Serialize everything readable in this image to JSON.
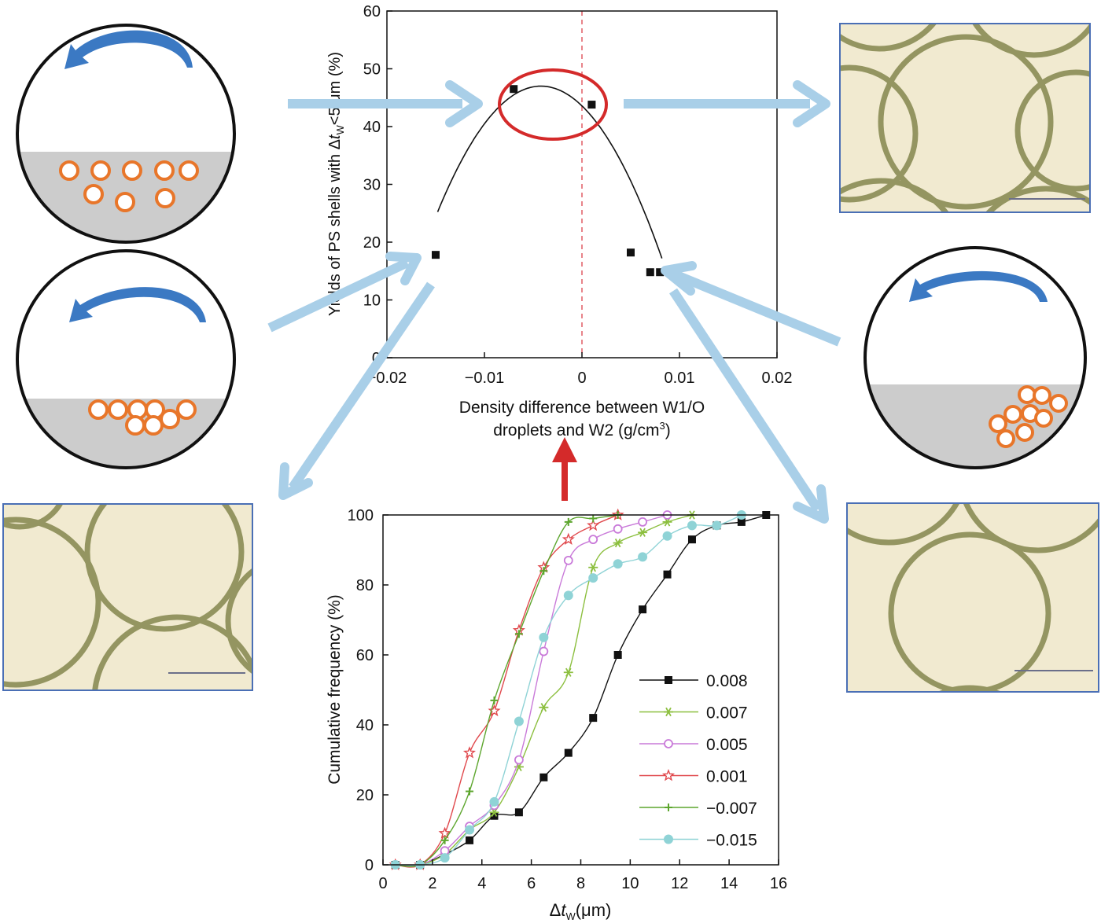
{
  "chart_data": [
    {
      "type": "scatter",
      "ylabel_pre": "Yields of PS shells with Δ",
      "ylabel_t": "t",
      "ylabel_sub": "W",
      "ylabel_post": "<5 μm (%)",
      "xlabel_line1": "Density difference between W1/O",
      "xlabel_line2_pre": "droplets and W2 (g/cm",
      "xlabel_line2_sup": "3",
      "xlabel_line2_post": ")",
      "xlim": [
        -0.02,
        0.02
      ],
      "ylim": [
        0,
        60
      ],
      "x_ticks": [
        -0.02,
        -0.01,
        0,
        0.01,
        0.02
      ],
      "x_tick_labels": [
        "−0.02",
        "−0.01",
        "0",
        "0.01",
        "0.02"
      ],
      "y_ticks": [
        0,
        10,
        20,
        30,
        40,
        50,
        60
      ],
      "y_tick_labels": [
        "0",
        "10",
        "20",
        "30",
        "40",
        "50",
        "60"
      ],
      "points": [
        {
          "x": -0.015,
          "y": 17.8
        },
        {
          "x": -0.007,
          "y": 46.5
        },
        {
          "x": 0.001,
          "y": 43.8
        },
        {
          "x": 0.005,
          "y": 18.2
        },
        {
          "x": 0.007,
          "y": 14.8
        },
        {
          "x": 0.008,
          "y": 14.8
        }
      ],
      "fit_curve": {
        "vertex_x": -0.0042,
        "vertex_y": 47.0,
        "coef": -193800,
        "x_range": [
          -0.0148,
          0.0082
        ]
      },
      "highlight_color": "#d42a2a",
      "zero_line_color": "#e8848a"
    },
    {
      "type": "line",
      "ylabel": "Cumulative frequency (%)",
      "xlabel_pre": "Δ",
      "xlabel_t": "t",
      "xlabel_sub": "W",
      "xlabel_post": "(μm)",
      "xlim": [
        0,
        16
      ],
      "ylim": [
        0,
        100
      ],
      "x_ticks": [
        0,
        2,
        4,
        6,
        8,
        10,
        12,
        14,
        16
      ],
      "x_tick_labels": [
        "0",
        "2",
        "4",
        "6",
        "8",
        "10",
        "12",
        "14",
        "16"
      ],
      "y_ticks": [
        0,
        20,
        40,
        60,
        80,
        100
      ],
      "y_tick_labels": [
        "0",
        "20",
        "40",
        "60",
        "80",
        "100"
      ],
      "series": [
        {
          "name": "0.008",
          "color": "#111111",
          "marker": "square",
          "x": [
            0.5,
            1.5,
            2.5,
            3.5,
            4.5,
            5.5,
            6.5,
            7.5,
            8.5,
            9.5,
            10.5,
            11.5,
            12.5,
            13.5,
            14.5,
            15.5
          ],
          "y": [
            0,
            0,
            3,
            7,
            14,
            15,
            25,
            32,
            42,
            60,
            73,
            83,
            93,
            97,
            98,
            100
          ]
        },
        {
          "name": "0.007",
          "color": "#8cbf3f",
          "marker": "asterisk",
          "x": [
            0.5,
            1.5,
            2.5,
            3.5,
            4.5,
            5.5,
            6.5,
            7.5,
            8.5,
            9.5,
            10.5,
            11.5,
            12.5
          ],
          "y": [
            0,
            0,
            3,
            10,
            15,
            28,
            45,
            55,
            85,
            92,
            95,
            98,
            100
          ]
        },
        {
          "name": "0.005",
          "color": "#c97ad9",
          "marker": "circle-open",
          "x": [
            0.5,
            1.5,
            2.5,
            3.5,
            4.5,
            5.5,
            6.5,
            7.5,
            8.5,
            9.5,
            10.5,
            11.5
          ],
          "y": [
            0,
            0,
            4,
            11,
            17,
            30,
            61,
            87,
            93,
            96,
            98,
            100
          ]
        },
        {
          "name": "0.001",
          "color": "#e0484c",
          "marker": "star-open",
          "x": [
            0.5,
            1.5,
            2.5,
            3.5,
            4.5,
            5.5,
            6.5,
            7.5,
            8.5,
            9.5
          ],
          "y": [
            0,
            0,
            9,
            32,
            44,
            67,
            85,
            93,
            97,
            100
          ]
        },
        {
          "name": "−0.007",
          "color": "#5da62e",
          "marker": "plus",
          "x": [
            0.5,
            1.5,
            2.5,
            3.5,
            4.5,
            5.5,
            6.5,
            7.5,
            8.5,
            9.5
          ],
          "y": [
            0,
            0,
            7,
            21,
            47,
            66,
            84,
            98,
            99,
            100
          ]
        },
        {
          "name": "−0.015",
          "color": "#8fd3d6",
          "marker": "circle-filled",
          "x": [
            0.5,
            1.5,
            2.5,
            3.5,
            4.5,
            5.5,
            6.5,
            7.5,
            8.5,
            9.5,
            10.5,
            11.5,
            12.5,
            13.5,
            14.5
          ],
          "y": [
            0,
            0,
            2,
            10,
            18,
            41,
            65,
            77,
            82,
            86,
            88,
            94,
            97,
            97,
            100
          ]
        }
      ],
      "legend_placement": "lower-right"
    }
  ],
  "scene": {
    "arrow_blue": "#a9cfe8",
    "arrow_red": "#d42a2a",
    "rotation_arrow_color": "#3b79c3",
    "particle_color": "#e8762a",
    "sediment_color": "#cccccc",
    "photo_border": "#4a6fb5",
    "photo_bg": "#f1ead0",
    "photo_shell": "#7e8046"
  }
}
